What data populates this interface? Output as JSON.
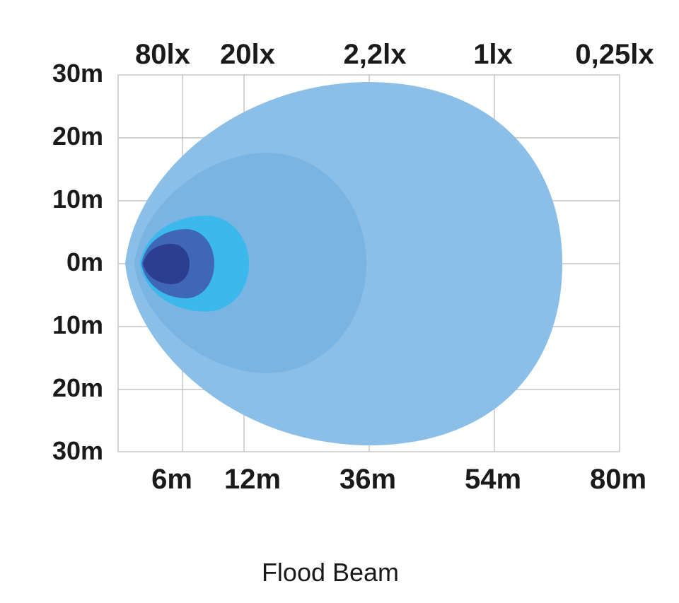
{
  "chart_data": {
    "type": "isolux-beam-pattern",
    "title": "Flood Beam",
    "y_ticks": [
      "30m",
      "20m",
      "10m",
      "0m",
      "10m",
      "20m",
      "30m"
    ],
    "x_ticks": [
      "6m",
      "12m",
      "36m",
      "54m",
      "80m"
    ],
    "lux_labels": [
      "80lx",
      "20lx",
      "2,2lx",
      "1lx",
      "0,25lx"
    ],
    "grid": true,
    "contours": [
      {
        "lux": "0,25lx",
        "reach_m": 80,
        "half_width_m": 29,
        "color": "#8bbfe8"
      },
      {
        "lux": "1lx",
        "reach_m": 54,
        "half_width_m": 18,
        "color": "#76b1e2"
      },
      {
        "lux": "2,2lx",
        "reach_m": 36,
        "half_width_m": 8,
        "color": "#3bb8ec"
      },
      {
        "lux": "20lx",
        "reach_m": 12,
        "half_width_m": 6,
        "color": "#3e68b7"
      },
      {
        "lux": "80lx",
        "reach_m": 6,
        "half_width_m": 3,
        "color": "#2d3e91"
      }
    ]
  }
}
